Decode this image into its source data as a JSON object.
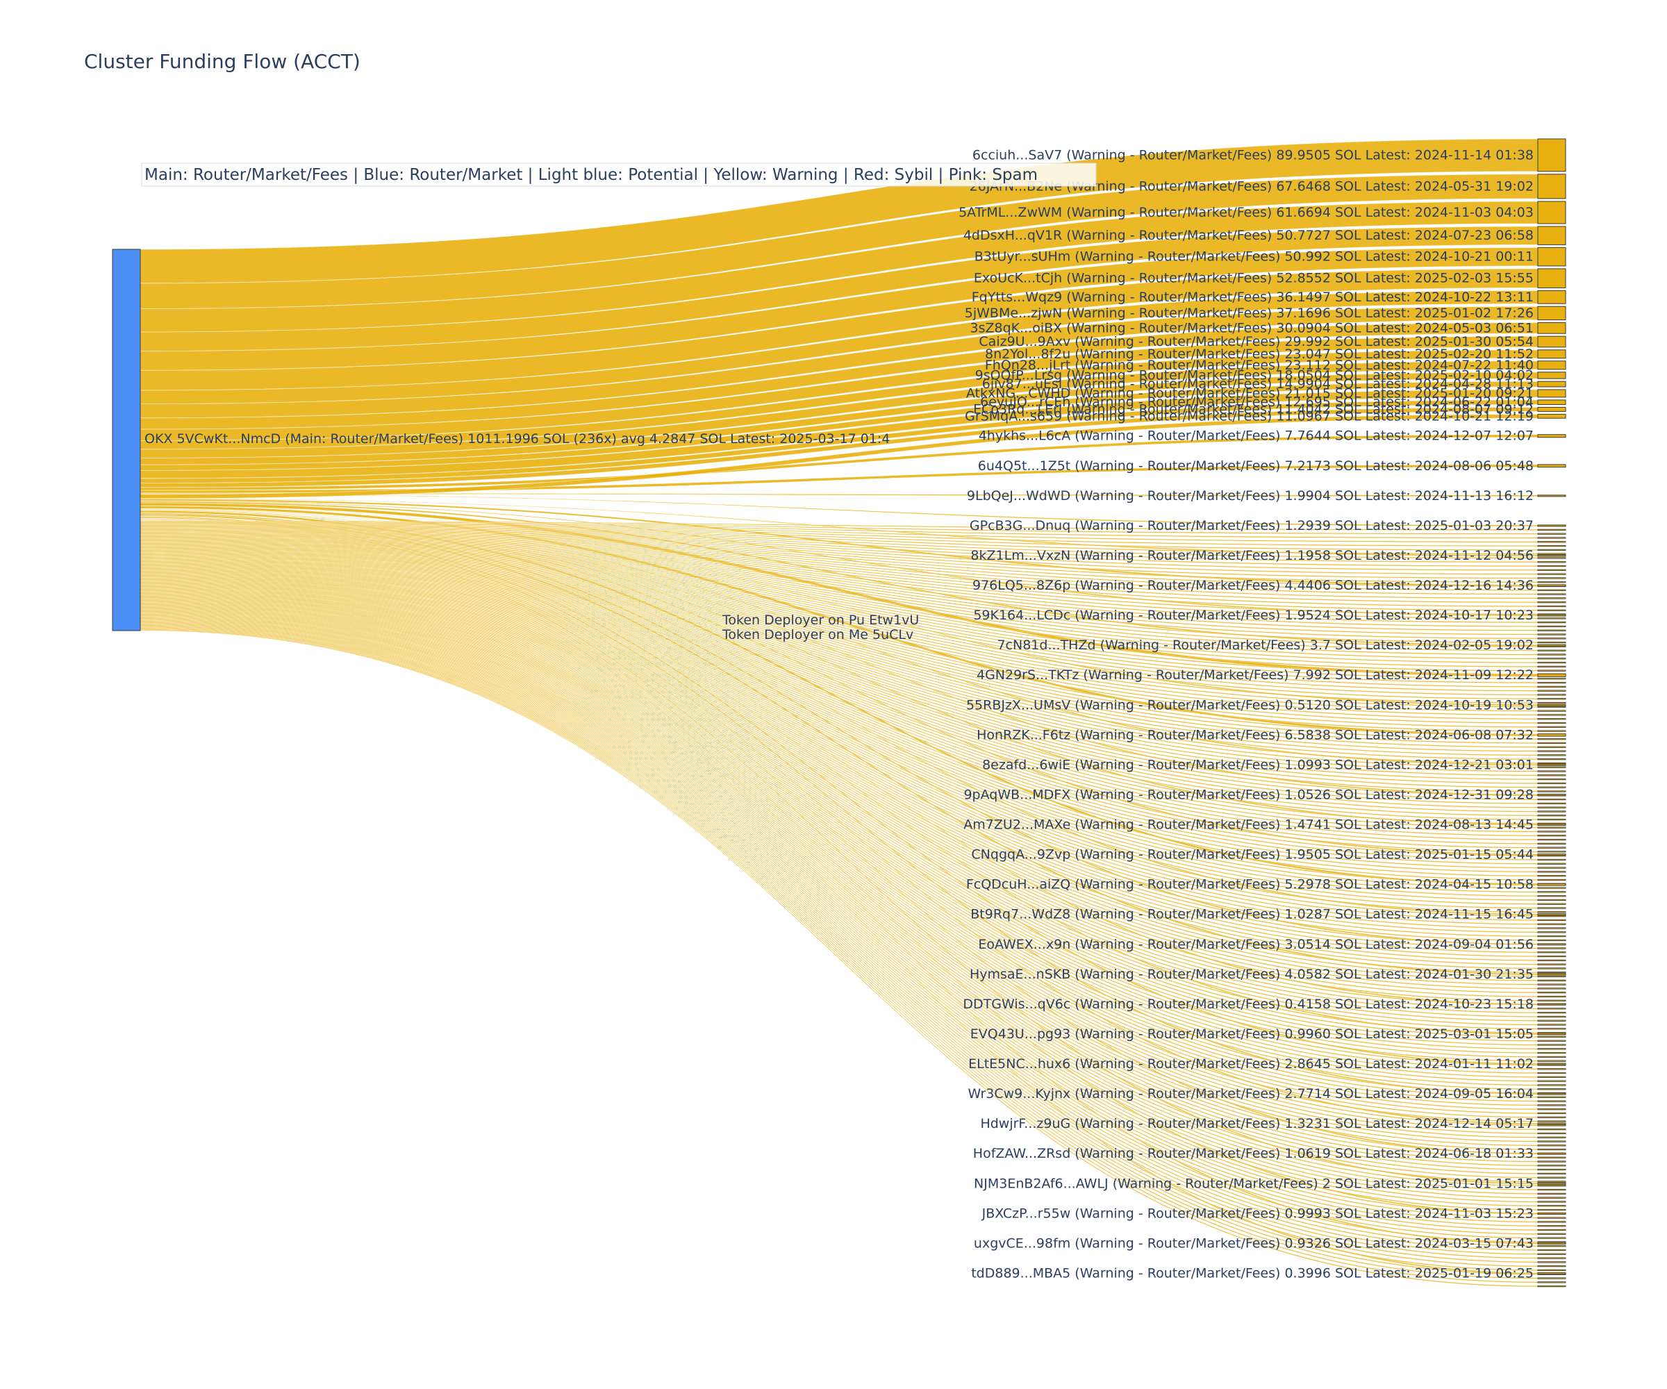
{
  "title": "Cluster Funding Flow (ACCT)",
  "legend_text": "Main: Router/Market/Fees  |  Blue: Router/Market | Light blue: Potential | Yellow: Warning | Red: Sybil | Pink: Spam",
  "colors": {
    "source_node": "#4b8ef5",
    "link": "#e9b10f",
    "target_node": "#e9b10f",
    "node_border": "#3a3a3a",
    "text": "#2a3f5f"
  },
  "chart_data": {
    "type": "sankey",
    "title": "Cluster Funding Flow (ACCT)",
    "source": {
      "label": "OKX 5VCwKt...NmcD (Main: Router/Market/Fees) 1011.1996 SOL (236x) avg 4.2847 SOL Latest: 2025-03-17 01:4",
      "value": 1011.1996
    },
    "targets": [
      {
        "label": "6cciuh...SaV7 (Warning - Router/Market/Fees) 89.9505 SOL Latest: 2024-11-14 01:38",
        "value": 89.9505
      },
      {
        "label": "26JArN...B2Ne (Warning - Router/Market/Fees) 67.6468 SOL Latest: 2024-05-31 19:02",
        "value": 67.6468
      },
      {
        "label": "5ATrML...ZwWM (Warning - Router/Market/Fees) 61.6694 SOL Latest: 2024-11-03 04:03",
        "value": 61.6694
      },
      {
        "label": "4dDsxH...qV1R (Warning - Router/Market/Fees) 50.7727 SOL Latest: 2024-07-23 06:58",
        "value": 50.7727
      },
      {
        "label": "B3tUyr...sUHm (Warning - Router/Market/Fees) 50.992 SOL Latest: 2024-10-21 00:11",
        "value": 50.992
      },
      {
        "label": "ExoUcK...tCjh (Warning - Router/Market/Fees) 52.8552 SOL Latest: 2025-02-03 15:55",
        "value": 52.8552
      },
      {
        "label": "FqYtts...Wqz9 (Warning - Router/Market/Fees) 36.1497 SOL Latest: 2024-10-22 13:11",
        "value": 36.1497
      },
      {
        "label": "5jWBMe...zjwN (Warning - Router/Market/Fees) 37.1696 SOL Latest: 2025-01-02 17:26",
        "value": 37.1696
      },
      {
        "label": "3sZ8qK...oiBX (Warning - Router/Market/Fees) 30.0904 SOL Latest: 2024-05-03 06:51",
        "value": 30.0904
      },
      {
        "label": "Caiz9U...9Axv (Warning - Router/Market/Fees) 29.992 SOL Latest: 2025-01-30 05:54",
        "value": 29.992
      },
      {
        "label": "8n2Yol...8f2u (Warning - Router/Market/Fees) 23.047 SOL Latest: 2025-02-20 11:52",
        "value": 23.047
      },
      {
        "label": "FhQn28...jLrt (Warning - Router/Market/Fees) 23.112 SOL Latest: 2024-07-22 11:40",
        "value": 23.112
      },
      {
        "label": "9sQQfP...Lrsg (Warning - Router/Market/Fees) 18.0504 SOL Latest: 2025-02-10 04:02",
        "value": 18.0504
      },
      {
        "label": "6jiv87...uEsl (Warning - Router/Market/Fees) 14.9904 SOL Latest: 2024-04-28 11:13",
        "value": 14.9904
      },
      {
        "label": "AtkxNG...CWHD (Warning - Router/Market/Fees) 21.015 SOL Latest: 2025-01-20 09:21",
        "value": 21.015
      },
      {
        "label": "6eyuJO...rCEh (Warning - Router/Market/Fees) 12.695 SOL Latest: 2024-06-22 01:04",
        "value": 12.695
      },
      {
        "label": "ECo3Rq...LEri (Warning - Router/Market/Fees) 11.4042 SOL Latest: 2024-08-07 09:12",
        "value": 11.4042
      },
      {
        "label": "4hykhs...L6cA (Warning - Router/Market/Fees) 7.7644 SOL Latest: 2024-12-07 12:07",
        "value": 7.7644
      },
      {
        "label": "6u4Q5t...1Z5t (Warning - Router/Market/Fees) 7.2173 SOL Latest: 2024-08-06 05:48",
        "value": 7.2173
      },
      {
        "label": "9LbQeJ...WdWD (Warning - Router/Market/Fees) 1.9904 SOL Latest: 2024-11-13 16:12",
        "value": 1.9904
      },
      {
        "label": "GPcB3G...Dnuq (Warning - Router/Market/Fees) 1.2939 SOL Latest: 2025-01-03 20:37",
        "value": 1.2939
      },
      {
        "label": "GrSMqA...s659 (Warning - Router/Market/Fees) 11.0967 SOL Latest: 2024-10-21 12:19",
        "value": 11.0967
      },
      {
        "label": "8kZ1Lm...VxzN (Warning - Router/Market/Fees) 1.1958 SOL Latest: 2024-11-12 04:56",
        "value": 1.1958
      },
      {
        "label": "976LQ5...8Z6p (Warning - Router/Market/Fees) 4.4406 SOL Latest: 2024-12-16 14:36",
        "value": 4.4406
      },
      {
        "label": "59K164...LCDc (Warning - Router/Market/Fees) 1.9524 SOL Latest: 2024-10-17 10:23",
        "value": 1.9524
      },
      {
        "label": "7cN81d...THZd (Warning - Router/Market/Fees) 3.7 SOL Latest: 2024-02-05 19:02",
        "value": 3.7
      },
      {
        "label": "4GN29rS...TKTz (Warning - Router/Market/Fees) 7.992 SOL Latest: 2024-11-09 12:22",
        "value": 7.992
      },
      {
        "label": "55RBJzX...UMsV (Warning - Router/Market/Fees) 0.5120 SOL Latest: 2024-10-19 10:53",
        "value": 0.512
      },
      {
        "label": "HonRZK...F6tz (Warning - Router/Market/Fees) 6.5838 SOL Latest: 2024-06-08 07:32",
        "value": 6.5838
      },
      {
        "label": "8ezafd...6wiE (Warning - Router/Market/Fees) 1.0993 SOL Latest: 2024-12-21 03:01",
        "value": 1.0993
      },
      {
        "label": "9pAqWB...MDFX (Warning - Router/Market/Fees) 1.0526 SOL Latest: 2024-12-31 09:28",
        "value": 1.0526
      },
      {
        "label": "Am7ZU2...MAXe (Warning - Router/Market/Fees) 1.4741 SOL Latest: 2024-08-13 14:45",
        "value": 1.4741
      },
      {
        "label": "CNqgqA...9Zvp (Warning - Router/Market/Fees) 1.9505 SOL Latest: 2025-01-15 05:44",
        "value": 1.9505
      },
      {
        "label": "FcQDcuH...aiZQ (Warning - Router/Market/Fees) 5.2978 SOL Latest: 2024-04-15 10:58",
        "value": 5.2978
      },
      {
        "label": "Bt9Rq7...WdZ8 (Warning - Router/Market/Fees) 1.0287 SOL Latest: 2024-11-15 16:45",
        "value": 1.0287
      },
      {
        "label": "EoAWEX...x9n (Warning - Router/Market/Fees) 3.0514 SOL Latest: 2024-09-04 01:56",
        "value": 3.0514
      },
      {
        "label": "HymsaE...nSKB (Warning - Router/Market/Fees) 4.0582 SOL Latest: 2024-01-30 21:35",
        "value": 4.0582
      },
      {
        "label": "DDTGWis...qV6c (Warning - Router/Market/Fees) 0.4158 SOL Latest: 2024-10-23 15:18",
        "value": 0.4158
      },
      {
        "label": "EVQ43U...pg93 (Warning - Router/Market/Fees) 0.9960 SOL Latest: 2025-03-01 15:05",
        "value": 0.996
      },
      {
        "label": "ELtE5NC...hux6 (Warning - Router/Market/Fees) 2.8645 SOL Latest: 2024-01-11 11:02",
        "value": 2.8645
      },
      {
        "label": "Wr3Cw9...Kyjnx (Warning - Router/Market/Fees) 2.7714 SOL Latest: 2024-09-05 16:04",
        "value": 2.7714
      },
      {
        "label": "HdwjrF...z9uG (Warning - Router/Market/Fees) 1.3231 SOL Latest: 2024-12-14 05:17",
        "value": 1.3231
      },
      {
        "label": "HofZAW...ZRsd (Warning - Router/Market/Fees) 1.0619 SOL Latest: 2024-06-18 01:33",
        "value": 1.0619
      },
      {
        "label": "NJM3EnB2Af6...AWLJ (Warning - Router/Market/Fees) 2 SOL Latest: 2025-01-01 15:15",
        "value": 2
      },
      {
        "label": "JBXCzP...r55w (Warning - Router/Market/Fees) 0.9993 SOL Latest: 2024-11-03 15:23",
        "value": 0.9993
      },
      {
        "label": "uxgvCE...98fm (Warning - Router/Market/Fees) 0.9326 SOL Latest: 2024-03-15 07:43",
        "value": 0.9326
      },
      {
        "label": "tdD889...MBA5 (Warning - Router/Market/Fees) 0.3996 SOL Latest: 2025-01-19 06:25",
        "value": 0.3996
      }
    ],
    "mid_labels": [
      "Token Deployer on Pu Etw1vU",
      "Token Deployer on Me 5uCLv"
    ]
  }
}
